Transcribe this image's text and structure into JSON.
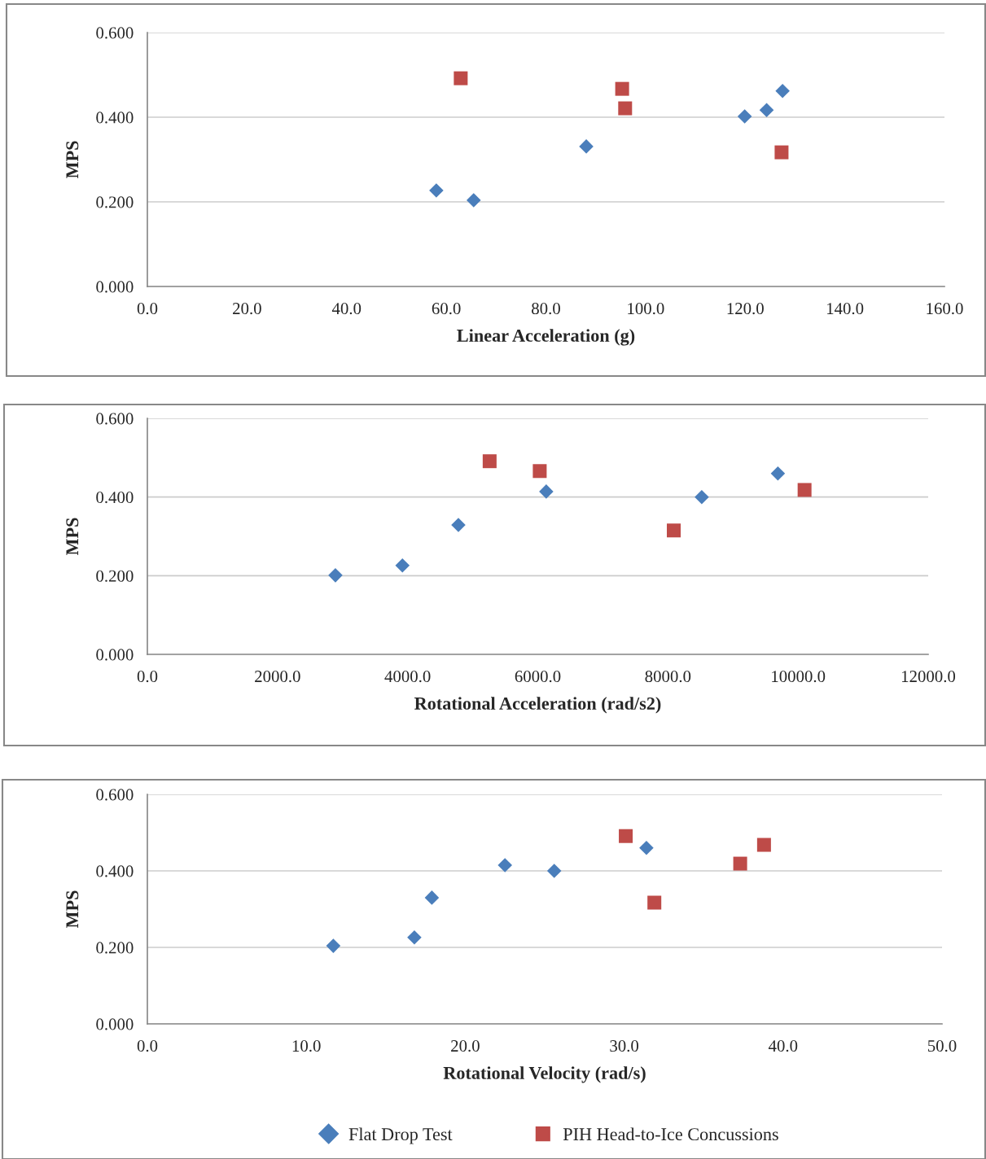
{
  "chart_data": [
    {
      "type": "scatter",
      "xlabel": "Linear Acceleration (g)",
      "ylabel": "MPS",
      "xlim": [
        0,
        160
      ],
      "ylim": [
        0,
        0.6
      ],
      "xticks": [
        {
          "value": 0,
          "label": "0.0"
        },
        {
          "value": 20,
          "label": "20.0"
        },
        {
          "value": 40,
          "label": "40.0"
        },
        {
          "value": 60,
          "label": "60.0"
        },
        {
          "value": 80,
          "label": "80.0"
        },
        {
          "value": 100,
          "label": "100.0"
        },
        {
          "value": 120,
          "label": "120.0"
        },
        {
          "value": 140,
          "label": "140.0"
        },
        {
          "value": 160,
          "label": "160.0"
        }
      ],
      "yticks": [
        {
          "value": 0,
          "label": "0.000"
        },
        {
          "value": 0.2,
          "label": "0.200"
        },
        {
          "value": 0.4,
          "label": "0.400"
        },
        {
          "value": 0.6,
          "label": "0.600"
        }
      ],
      "grid": "y",
      "legend": false,
      "series": [
        {
          "color": "#4a7ebb",
          "marker": "diamond",
          "x": [
            58.0,
            65.5,
            88.1,
            119.9,
            124.3,
            127.5
          ],
          "values": [
            0.227,
            0.204,
            0.331,
            0.402,
            0.417,
            0.462
          ]
        },
        {
          "color": "#be4b48",
          "marker": "square",
          "x": [
            62.9,
            95.3,
            95.9,
            127.3
          ],
          "values": [
            0.492,
            0.467,
            0.421,
            0.317
          ]
        }
      ]
    },
    {
      "type": "scatter",
      "xlabel": "Rotational Acceleration (rad/s2)",
      "ylabel": "MPS",
      "xlim": [
        0,
        12000
      ],
      "ylim": [
        0,
        0.6
      ],
      "xticks": [
        {
          "value": 0,
          "label": "0.0"
        },
        {
          "value": 2000,
          "label": "2000.0"
        },
        {
          "value": 4000,
          "label": "4000.0"
        },
        {
          "value": 6000,
          "label": "6000.0"
        },
        {
          "value": 8000,
          "label": "8000.0"
        },
        {
          "value": 10000,
          "label": "10000.0"
        },
        {
          "value": 12000,
          "label": "12000.0"
        }
      ],
      "yticks": [
        {
          "value": 0,
          "label": "0.000"
        },
        {
          "value": 0.2,
          "label": "0.200"
        },
        {
          "value": 0.4,
          "label": "0.400"
        },
        {
          "value": 0.6,
          "label": "0.600"
        }
      ],
      "grid": "y",
      "legend": false,
      "series": [
        {
          "color": "#4a7ebb",
          "marker": "diamond",
          "x": [
            2890,
            3920,
            4780,
            6130,
            8520,
            9690
          ],
          "values": [
            0.201,
            0.226,
            0.329,
            0.414,
            0.4,
            0.46
          ]
        },
        {
          "color": "#be4b48",
          "marker": "square",
          "x": [
            5260,
            6030,
            8090,
            10100
          ],
          "values": [
            0.491,
            0.466,
            0.315,
            0.418
          ]
        }
      ]
    },
    {
      "type": "scatter",
      "xlabel": "Rotational Velocity (rad/s)",
      "ylabel": "MPS",
      "xlim": [
        0,
        50
      ],
      "ylim": [
        0,
        0.6
      ],
      "xticks": [
        {
          "value": 0,
          "label": "0.0"
        },
        {
          "value": 10,
          "label": "10.0"
        },
        {
          "value": 20,
          "label": "20.0"
        },
        {
          "value": 30,
          "label": "30.0"
        },
        {
          "value": 40,
          "label": "40.0"
        },
        {
          "value": 50,
          "label": "50.0"
        }
      ],
      "yticks": [
        {
          "value": 0,
          "label": "0.000"
        },
        {
          "value": 0.2,
          "label": "0.200"
        },
        {
          "value": 0.4,
          "label": "0.400"
        },
        {
          "value": 0.6,
          "label": "0.600"
        }
      ],
      "grid": "y",
      "legend": "bottom",
      "series": [
        {
          "name": "Flat Drop Test",
          "color": "#4a7ebb",
          "marker": "diamond",
          "x": [
            11.7,
            16.8,
            17.9,
            22.5,
            25.6,
            31.4
          ],
          "values": [
            0.204,
            0.226,
            0.33,
            0.415,
            0.4,
            0.46
          ]
        },
        {
          "name": "PIH Head-to-Ice Concussions",
          "color": "#be4b48",
          "marker": "square",
          "x": [
            30.1,
            31.9,
            37.3,
            38.8
          ],
          "values": [
            0.491,
            0.317,
            0.419,
            0.468
          ]
        }
      ]
    }
  ]
}
